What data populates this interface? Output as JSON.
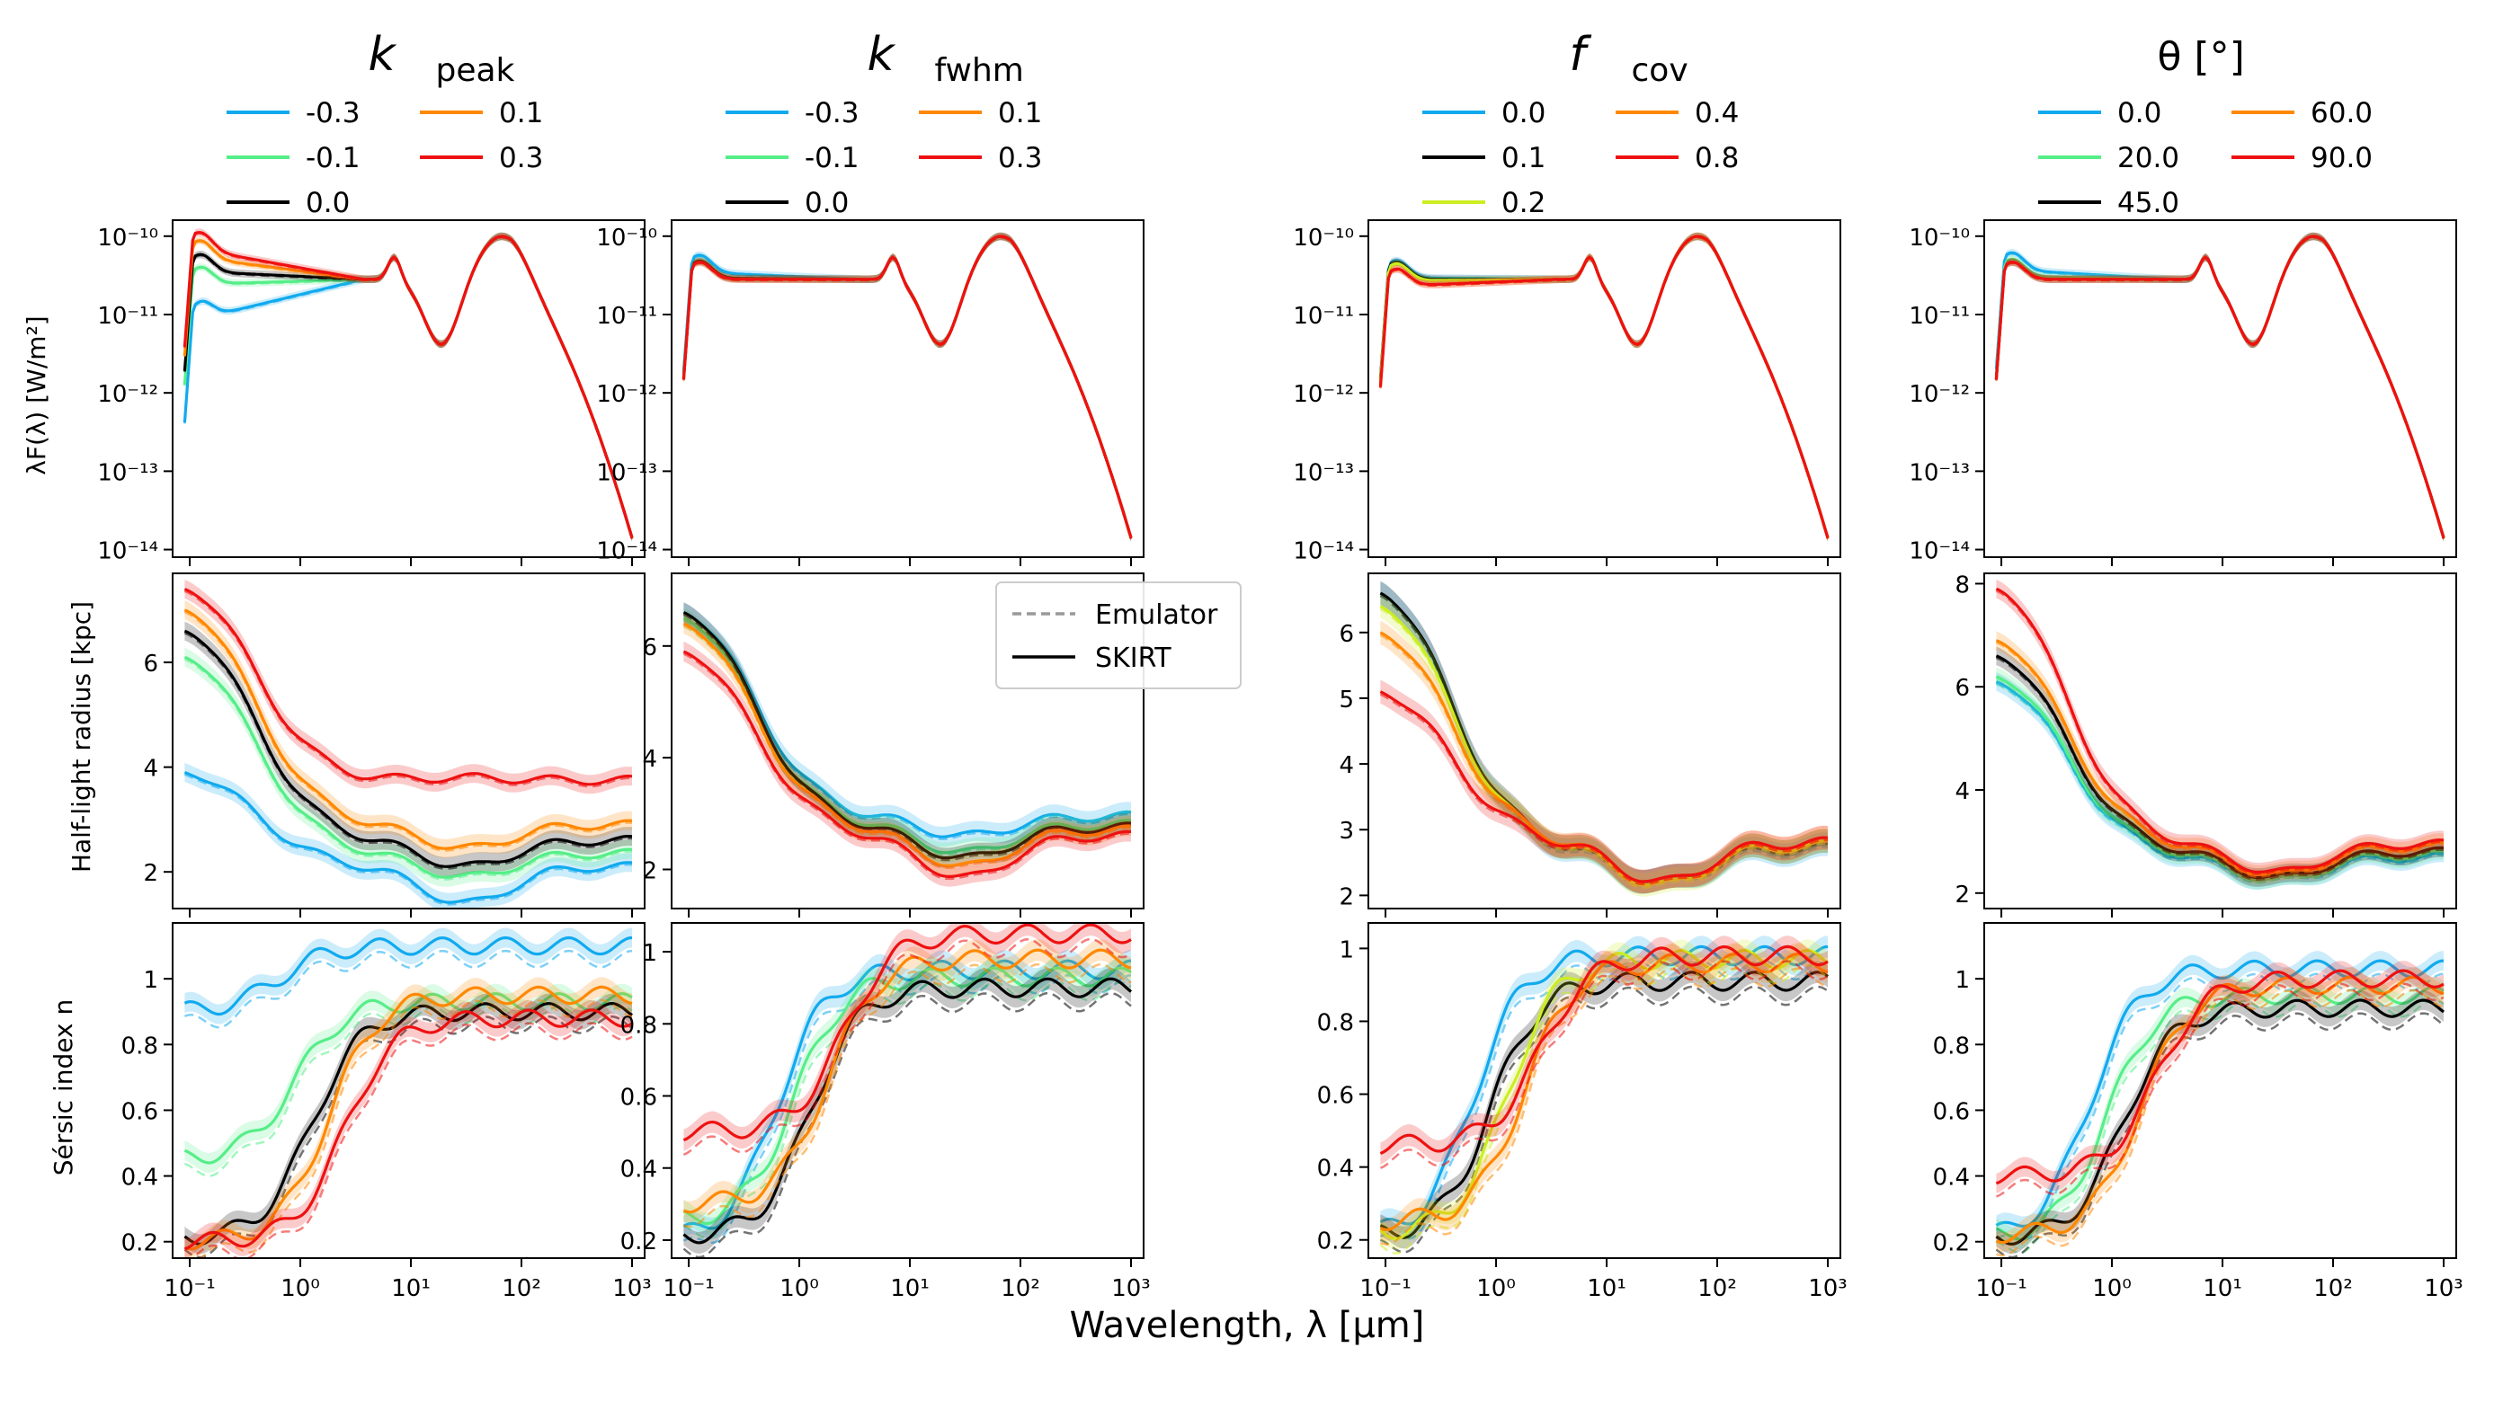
{
  "figure": {
    "xlabel": "Wavelength, λ [μm]",
    "row_ylabels": [
      "λF(λ)  [W/m²]",
      "Half-light radius [kpc]",
      "Sérsic index n"
    ],
    "compare_legend": [
      {
        "label": "Emulator",
        "style": "dashed",
        "color": "#999999"
      },
      {
        "label": "SKIRT",
        "style": "solid",
        "color": "#000000"
      }
    ]
  },
  "chart_data": [
    {
      "type": "line",
      "param_title": {
        "base": "k",
        "sub": "peak",
        "text": "k_peak"
      },
      "legend": [
        "-0.3",
        "-0.1",
        "0.0",
        "0.1",
        "0.3"
      ],
      "colors": [
        "#11aaee",
        "#55ee88",
        "#000000",
        "#ff8800",
        "#ee1111"
      ],
      "xscale": "log",
      "xlim": [
        0.07,
        1300
      ],
      "xticks": [
        "10⁻¹",
        "10⁰",
        "10¹",
        "10²",
        "10³"
      ],
      "panels": [
        {
          "yscale": "log",
          "ylim": [
            8e-15,
            1.6e-10
          ],
          "yticks": [
            "10⁻¹⁰",
            "10⁻¹¹",
            "10⁻¹²",
            "10⁻¹³",
            "10⁻¹⁴"
          ],
          "factors": [
            [
              0.28,
              0.4,
              0.62,
              0.85,
              1.0
            ],
            [
              0.85,
              0.9,
              0.93,
              0.97,
              1.03
            ],
            [
              1.28,
              1.12,
              1.0,
              0.92,
              0.88
            ],
            [
              2.0,
              1.48,
              1.0,
              0.7,
              0.6
            ],
            [
              2.6,
              1.7,
              1.0,
              0.55,
              0.42
            ]
          ]
        },
        {
          "yscale": "linear",
          "ylim": [
            1.3,
            7.7
          ],
          "yticks": [
            2,
            4,
            6
          ],
          "uv": [
            3.9,
            6.1,
            6.6,
            7.0,
            7.4
          ],
          "plat": [
            2.1,
            2.35,
            2.6,
            2.9,
            3.75
          ],
          "dip": [
            1.4,
            1.9,
            2.1,
            2.45,
            3.8
          ]
        },
        {
          "yscale": "linear",
          "ylim": [
            0.15,
            1.17
          ],
          "yticks": [
            0.2,
            0.4,
            0.6,
            0.8,
            1.0
          ],
          "start": [
            0.9,
            0.45,
            0.21,
            0.2,
            0.2
          ],
          "end": [
            1.1,
            0.93,
            0.9,
            0.95,
            0.88
          ]
        }
      ]
    },
    {
      "type": "line",
      "param_title": {
        "base": "k",
        "sub": "fwhm",
        "text": "k_fwhm"
      },
      "legend": [
        "-0.3",
        "-0.1",
        "0.0",
        "0.1",
        "0.3"
      ],
      "colors": [
        "#11aaee",
        "#55ee88",
        "#000000",
        "#ff8800",
        "#ee1111"
      ],
      "xscale": "log",
      "xlim": [
        0.07,
        1300
      ],
      "xticks": [
        "10⁻¹",
        "10⁰",
        "10¹",
        "10²",
        "10³"
      ],
      "panels": [
        {
          "yscale": "log",
          "ylim": [
            8e-15,
            1.6e-10
          ],
          "yticks": [
            "10⁻¹⁰",
            "10⁻¹¹",
            "10⁻¹²",
            "10⁻¹³",
            "10⁻¹⁴"
          ],
          "factors": [
            [
              1.25,
              1.12,
              1.0,
              0.92,
              0.8
            ],
            [
              1.05,
              1.02,
              1.0,
              0.98,
              0.95
            ],
            [
              1.03,
              1.01,
              1.0,
              0.99,
              0.97
            ],
            [
              1.0,
              1.0,
              1.0,
              1.0,
              1.0
            ],
            [
              1.0,
              1.0,
              1.0,
              1.0,
              1.0
            ]
          ]
        },
        {
          "yscale": "linear",
          "ylim": [
            1.3,
            7.3
          ],
          "yticks": [
            2,
            4,
            6
          ],
          "uv": [
            6.6,
            6.5,
            6.6,
            6.4,
            5.9
          ],
          "plat": [
            2.95,
            2.8,
            2.75,
            2.7,
            2.6
          ],
          "dip": [
            2.6,
            2.3,
            2.2,
            2.05,
            1.85
          ]
        },
        {
          "yscale": "linear",
          "ylim": [
            0.15,
            1.08
          ],
          "yticks": [
            0.2,
            0.4,
            0.6,
            0.8,
            1.0
          ],
          "start": [
            0.2,
            0.25,
            0.21,
            0.3,
            0.5
          ],
          "end": [
            0.95,
            0.93,
            0.9,
            0.98,
            1.05
          ]
        }
      ]
    },
    {
      "type": "line",
      "param_title": {
        "base": "f",
        "sub": "cov",
        "text": "f_cov"
      },
      "legend": [
        "0.0",
        "0.1",
        "0.2",
        "0.4",
        "0.8"
      ],
      "colors": [
        "#11aaee",
        "#000000",
        "#ccee22",
        "#ff8800",
        "#ee1111"
      ],
      "xscale": "log",
      "xlim": [
        0.07,
        1300
      ],
      "xticks": [
        "10⁻¹",
        "10⁰",
        "10¹",
        "10²",
        "10³"
      ],
      "panels": [
        {
          "yscale": "log",
          "ylim": [
            8e-15,
            1.6e-10
          ],
          "yticks": [
            "10⁻¹⁰",
            "10⁻¹¹",
            "10⁻¹²",
            "10⁻¹³",
            "10⁻¹⁴"
          ],
          "factors": [
            [
              1.05,
              1.02,
              1.0,
              0.98,
              0.92
            ],
            [
              1.0,
              1.0,
              1.0,
              1.0,
              1.0
            ],
            [
              0.95,
              0.98,
              1.0,
              1.02,
              1.05
            ],
            [
              0.8,
              0.9,
              1.0,
              1.05,
              1.1
            ],
            [
              0.8,
              0.9,
              1.0,
              1.05,
              1.1
            ]
          ]
        },
        {
          "yscale": "linear",
          "ylim": [
            1.8,
            6.9
          ],
          "yticks": [
            2,
            3,
            4,
            5,
            6
          ],
          "uv": [
            6.6,
            6.6,
            6.4,
            6.0,
            5.1
          ],
          "plat": [
            2.7,
            2.75,
            2.75,
            2.8,
            2.8
          ],
          "dip": [
            2.2,
            2.2,
            2.15,
            2.2,
            2.2
          ]
        },
        {
          "yscale": "linear",
          "ylim": [
            0.15,
            1.07
          ],
          "yticks": [
            0.2,
            0.4,
            0.6,
            0.8,
            1.0
          ],
          "start": [
            0.21,
            0.21,
            0.22,
            0.25,
            0.46
          ],
          "end": [
            0.98,
            0.91,
            0.97,
            0.96,
            0.98
          ]
        }
      ]
    },
    {
      "type": "line",
      "param_title": {
        "base": "θ",
        "sub": "",
        "text": "θ [°]"
      },
      "legend": [
        "0.0",
        "20.0",
        "45.0",
        "60.0",
        "90.0"
      ],
      "colors": [
        "#11aaee",
        "#55ee88",
        "#000000",
        "#ff8800",
        "#ee1111"
      ],
      "xscale": "log",
      "xlim": [
        0.07,
        1300
      ],
      "xticks": [
        "10⁻¹",
        "10⁰",
        "10¹",
        "10²",
        "10³"
      ],
      "panels": [
        {
          "yscale": "log",
          "ylim": [
            8e-15,
            1.6e-10
          ],
          "yticks": [
            "10⁻¹⁰",
            "10⁻¹¹",
            "10⁻¹²",
            "10⁻¹³",
            "10⁻¹⁴"
          ],
          "factors": [
            [
              1.35,
              1.15,
              1.0,
              0.72,
              0.35
            ],
            [
              1.1,
              1.05,
              1.0,
              0.88,
              0.6
            ],
            [
              1.0,
              1.0,
              1.0,
              1.0,
              1.0
            ],
            [
              1.0,
              1.0,
              1.0,
              1.0,
              1.0
            ],
            [
              1.0,
              1.0,
              1.0,
              1.0,
              1.0
            ]
          ]
        },
        {
          "yscale": "linear",
          "ylim": [
            1.7,
            8.2
          ],
          "yticks": [
            2,
            4,
            6,
            8
          ],
          "uv": [
            6.1,
            6.2,
            6.6,
            6.9,
            7.9
          ],
          "plat": [
            2.7,
            2.75,
            2.8,
            2.9,
            2.95
          ],
          "dip": [
            2.25,
            2.25,
            2.3,
            2.35,
            2.4
          ]
        },
        {
          "yscale": "linear",
          "ylim": [
            0.15,
            1.17
          ],
          "yticks": [
            0.2,
            0.4,
            0.6,
            0.8,
            1.0
          ],
          "start": [
            0.21,
            0.21,
            0.21,
            0.22,
            0.4
          ],
          "end": [
            1.03,
            0.95,
            0.91,
            0.98,
            1.0
          ]
        }
      ]
    }
  ]
}
